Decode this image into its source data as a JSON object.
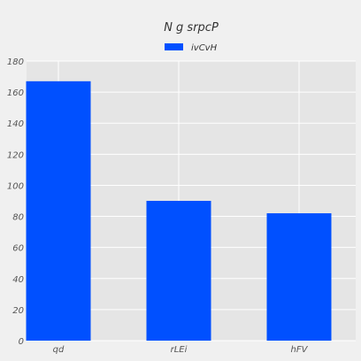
{
  "chart_data": {
    "type": "bar",
    "title": "N  g srpcP",
    "categories": [
      "qd",
      "rLEi",
      "hFV"
    ],
    "series": [
      {
        "name": "ivCvH",
        "values": [
          167,
          90,
          82
        ]
      }
    ],
    "xlabel": "",
    "ylabel": "",
    "ylim": [
      0,
      180
    ],
    "yticks": [
      0,
      20,
      40,
      60,
      80,
      100,
      120,
      140,
      160,
      180
    ],
    "grid": true,
    "legend": "top-center",
    "colors": {
      "bar": "#0050ff",
      "plot_bg": "#e5e5e5",
      "grid": "#ffffff"
    }
  }
}
